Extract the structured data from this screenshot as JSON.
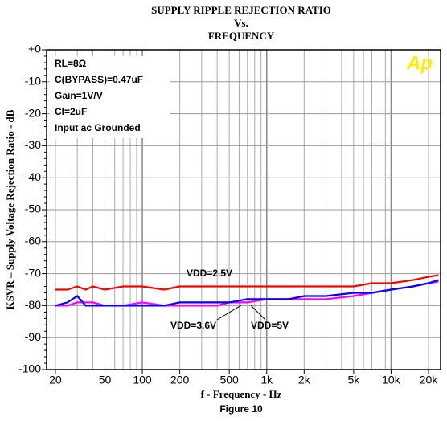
{
  "chart_data": {
    "type": "line",
    "title": [
      "SUPPLY RIPPLE REJECTION RATIO",
      "Vs.",
      "FREQUENCY"
    ],
    "xlabel": "f - Frequency - Hz",
    "ylabel": "KSVR – Supply Voltage Rejection Ratio - dB",
    "caption": "Figure 10",
    "logo": "Ap",
    "annotations": [
      "RL=8Ω",
      "C(BYPASS)=0.47uF",
      "Gain=1V/V",
      "CI=2uF",
      "Input ac Grounded"
    ],
    "xscale": "log",
    "xlim": [
      17,
      25000
    ],
    "ylim": [
      -100,
      0
    ],
    "xticks": [
      20,
      50,
      100,
      200,
      500,
      {
        "value": 1000,
        "label": "1k"
      },
      {
        "value": 2000,
        "label": "2k"
      },
      {
        "value": 5000,
        "label": "5k"
      },
      {
        "value": 10000,
        "label": "10k"
      },
      {
        "value": 20000,
        "label": "20k"
      }
    ],
    "yticks": [
      -100,
      -90,
      -80,
      -70,
      -60,
      -50,
      -40,
      -30,
      -20,
      -10,
      {
        "value": 0,
        "label": "+0"
      }
    ],
    "grid": true,
    "x": [
      20,
      25,
      30,
      35,
      40,
      50,
      70,
      100,
      150,
      200,
      300,
      400,
      500,
      700,
      1000,
      1500,
      2000,
      3000,
      5000,
      7000,
      10000,
      15000,
      20000,
      24000
    ],
    "series": [
      {
        "name": "VDD=2.5V",
        "color": "#ff0000",
        "values": [
          -75,
          -75,
          -74,
          -75,
          -74,
          -75,
          -74,
          -74,
          -75,
          -74,
          -74,
          -74,
          -74,
          -74,
          -74,
          -74,
          -74,
          -74,
          -74,
          -73,
          -73,
          -72,
          -71,
          -70.5
        ]
      },
      {
        "name": "VDD=3.6V",
        "color": "#ff00ff",
        "values": [
          -80,
          -80,
          -79,
          -79,
          -79,
          -80,
          -80,
          -79,
          -80,
          -80,
          -80,
          -80,
          -79,
          -79,
          -78,
          -78,
          -78,
          -78,
          -77,
          -76,
          -75,
          -74,
          -73,
          -72.5
        ]
      },
      {
        "name": "VDD=5V",
        "color": "#0000ff",
        "values": [
          -80,
          -79,
          -77,
          -80,
          -80,
          -80,
          -80,
          -80,
          -80,
          -79,
          -79,
          -79,
          -79,
          -78,
          -78,
          -78,
          -77,
          -77,
          -76,
          -76,
          -75,
          -74,
          -73,
          -72
        ]
      }
    ]
  }
}
